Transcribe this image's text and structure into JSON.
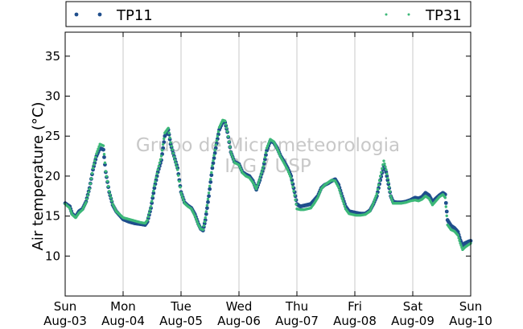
{
  "chart_data": {
    "type": "scatter",
    "ylabel": "Air temperature (°C)",
    "xlabel": "",
    "ylim": [
      5,
      38
    ],
    "xlim": [
      0,
      7
    ],
    "yticks": [
      10,
      15,
      20,
      25,
      30,
      35
    ],
    "xticks": [
      {
        "x": 0,
        "day": "Sun",
        "date": "Aug-03"
      },
      {
        "x": 1,
        "day": "Mon",
        "date": "Aug-04"
      },
      {
        "x": 2,
        "day": "Tue",
        "date": "Aug-05"
      },
      {
        "x": 3,
        "day": "Wed",
        "date": "Aug-06"
      },
      {
        "x": 4,
        "day": "Thu",
        "date": "Aug-07"
      },
      {
        "x": 5,
        "day": "Fri",
        "date": "Aug-08"
      },
      {
        "x": 6,
        "day": "Sat",
        "date": "Aug-09"
      },
      {
        "x": 7,
        "day": "Sun",
        "date": "Aug-10"
      }
    ],
    "grid": "vertical",
    "legend_placement": "top",
    "watermark": [
      "Grupo de Micrometeorologia",
      "IAG / USP"
    ],
    "series": [
      {
        "name": "TP11",
        "color": "#1f4e8c",
        "points": [
          [
            0.0,
            16.6
          ],
          [
            0.08,
            16.2
          ],
          [
            0.12,
            15.3
          ],
          [
            0.18,
            14.9
          ],
          [
            0.24,
            15.6
          ],
          [
            0.3,
            15.9
          ],
          [
            0.36,
            16.8
          ],
          [
            0.42,
            18.5
          ],
          [
            0.48,
            20.8
          ],
          [
            0.54,
            22.5
          ],
          [
            0.6,
            23.5
          ],
          [
            0.66,
            23.3
          ],
          [
            0.7,
            20.5
          ],
          [
            0.76,
            18.0
          ],
          [
            0.82,
            16.4
          ],
          [
            0.88,
            15.6
          ],
          [
            0.94,
            15.1
          ],
          [
            1.0,
            14.6
          ],
          [
            1.1,
            14.3
          ],
          [
            1.2,
            14.1
          ],
          [
            1.3,
            14.0
          ],
          [
            1.38,
            13.9
          ],
          [
            1.42,
            14.3
          ],
          [
            1.48,
            16.0
          ],
          [
            1.54,
            18.5
          ],
          [
            1.6,
            20.5
          ],
          [
            1.66,
            22.0
          ],
          [
            1.72,
            25.0
          ],
          [
            1.78,
            25.8
          ],
          [
            1.82,
            24.0
          ],
          [
            1.88,
            22.5
          ],
          [
            1.94,
            21.0
          ],
          [
            2.0,
            18.0
          ],
          [
            2.06,
            16.7
          ],
          [
            2.12,
            16.3
          ],
          [
            2.18,
            16.0
          ],
          [
            2.24,
            15.2
          ],
          [
            2.3,
            14.0
          ],
          [
            2.34,
            13.4
          ],
          [
            2.38,
            13.2
          ],
          [
            2.42,
            14.5
          ],
          [
            2.48,
            17.5
          ],
          [
            2.54,
            21.0
          ],
          [
            2.6,
            23.5
          ],
          [
            2.66,
            25.8
          ],
          [
            2.72,
            26.8
          ],
          [
            2.76,
            26.7
          ],
          [
            2.8,
            25.5
          ],
          [
            2.86,
            23.0
          ],
          [
            2.92,
            21.8
          ],
          [
            3.0,
            21.5
          ],
          [
            3.06,
            20.5
          ],
          [
            3.12,
            20.2
          ],
          [
            3.18,
            20.0
          ],
          [
            3.24,
            19.4
          ],
          [
            3.3,
            18.3
          ],
          [
            3.36,
            19.5
          ],
          [
            3.42,
            21.0
          ],
          [
            3.48,
            23.2
          ],
          [
            3.54,
            24.4
          ],
          [
            3.6,
            24.2
          ],
          [
            3.66,
            23.5
          ],
          [
            3.72,
            22.5
          ],
          [
            3.78,
            21.8
          ],
          [
            3.84,
            21.0
          ],
          [
            3.9,
            20.0
          ],
          [
            3.96,
            18.0
          ],
          [
            4.0,
            16.5
          ],
          [
            4.06,
            16.2
          ],
          [
            4.12,
            16.3
          ],
          [
            4.18,
            16.4
          ],
          [
            4.24,
            16.5
          ],
          [
            4.3,
            17.0
          ],
          [
            4.36,
            17.5
          ],
          [
            4.42,
            18.5
          ],
          [
            4.48,
            18.9
          ],
          [
            4.54,
            19.1
          ],
          [
            4.6,
            19.4
          ],
          [
            4.66,
            19.6
          ],
          [
            4.72,
            18.9
          ],
          [
            4.78,
            17.5
          ],
          [
            4.84,
            16.2
          ],
          [
            4.9,
            15.6
          ],
          [
            4.96,
            15.5
          ],
          [
            5.02,
            15.4
          ],
          [
            5.1,
            15.3
          ],
          [
            5.18,
            15.3
          ],
          [
            5.26,
            15.7
          ],
          [
            5.32,
            16.5
          ],
          [
            5.38,
            17.5
          ],
          [
            5.44,
            19.5
          ],
          [
            5.5,
            21.3
          ],
          [
            5.54,
            20.5
          ],
          [
            5.58,
            19.0
          ],
          [
            5.62,
            17.5
          ],
          [
            5.66,
            16.8
          ],
          [
            5.72,
            16.7
          ],
          [
            5.8,
            16.7
          ],
          [
            5.88,
            16.8
          ],
          [
            5.96,
            17.0
          ],
          [
            6.04,
            17.3
          ],
          [
            6.1,
            17.2
          ],
          [
            6.16,
            17.4
          ],
          [
            6.22,
            17.9
          ],
          [
            6.28,
            17.6
          ],
          [
            6.34,
            16.8
          ],
          [
            6.4,
            17.2
          ],
          [
            6.46,
            17.6
          ],
          [
            6.52,
            17.9
          ],
          [
            6.56,
            17.7
          ],
          [
            6.6,
            14.5
          ],
          [
            6.66,
            13.8
          ],
          [
            6.72,
            13.5
          ],
          [
            6.78,
            13.0
          ],
          [
            6.82,
            12.0
          ],
          [
            6.86,
            11.3
          ],
          [
            6.9,
            11.6
          ],
          [
            6.96,
            11.8
          ],
          [
            7.0,
            11.9
          ]
        ]
      },
      {
        "name": "TP31",
        "color": "#3cb878",
        "points": [
          [
            0.0,
            16.5
          ],
          [
            0.08,
            16.0
          ],
          [
            0.12,
            15.2
          ],
          [
            0.18,
            14.8
          ],
          [
            0.24,
            15.4
          ],
          [
            0.3,
            15.8
          ],
          [
            0.36,
            16.7
          ],
          [
            0.42,
            18.4
          ],
          [
            0.48,
            21.0
          ],
          [
            0.54,
            22.8
          ],
          [
            0.6,
            24.0
          ],
          [
            0.66,
            23.8
          ],
          [
            0.7,
            20.6
          ],
          [
            0.76,
            18.1
          ],
          [
            0.82,
            16.5
          ],
          [
            0.88,
            15.6
          ],
          [
            0.94,
            15.2
          ],
          [
            1.0,
            14.8
          ],
          [
            1.1,
            14.6
          ],
          [
            1.2,
            14.4
          ],
          [
            1.3,
            14.2
          ],
          [
            1.38,
            14.1
          ],
          [
            1.42,
            14.5
          ],
          [
            1.48,
            16.2
          ],
          [
            1.54,
            18.8
          ],
          [
            1.6,
            20.8
          ],
          [
            1.66,
            22.5
          ],
          [
            1.72,
            25.4
          ],
          [
            1.78,
            26.0
          ],
          [
            1.82,
            24.2
          ],
          [
            1.88,
            22.4
          ],
          [
            1.94,
            20.8
          ],
          [
            2.0,
            17.9
          ],
          [
            2.06,
            16.6
          ],
          [
            2.12,
            16.2
          ],
          [
            2.18,
            15.9
          ],
          [
            2.24,
            15.0
          ],
          [
            2.3,
            13.9
          ],
          [
            2.34,
            13.4
          ],
          [
            2.38,
            13.3
          ],
          [
            2.42,
            14.8
          ],
          [
            2.48,
            17.9
          ],
          [
            2.54,
            21.3
          ],
          [
            2.6,
            23.9
          ],
          [
            2.66,
            26.1
          ],
          [
            2.72,
            27.0
          ],
          [
            2.76,
            26.9
          ],
          [
            2.8,
            25.6
          ],
          [
            2.86,
            23.0
          ],
          [
            2.92,
            21.7
          ],
          [
            3.0,
            21.4
          ],
          [
            3.06,
            20.4
          ],
          [
            3.12,
            20.0
          ],
          [
            3.18,
            19.8
          ],
          [
            3.24,
            19.2
          ],
          [
            3.3,
            18.4
          ],
          [
            3.36,
            19.7
          ],
          [
            3.42,
            21.2
          ],
          [
            3.48,
            23.5
          ],
          [
            3.54,
            24.6
          ],
          [
            3.6,
            24.3
          ],
          [
            3.66,
            23.4
          ],
          [
            3.72,
            22.4
          ],
          [
            3.78,
            21.6
          ],
          [
            3.84,
            20.8
          ],
          [
            3.9,
            19.7
          ],
          [
            3.96,
            17.6
          ],
          [
            4.0,
            15.9
          ],
          [
            4.06,
            15.8
          ],
          [
            4.12,
            15.8
          ],
          [
            4.18,
            15.9
          ],
          [
            4.24,
            16.0
          ],
          [
            4.3,
            16.6
          ],
          [
            4.36,
            17.3
          ],
          [
            4.42,
            18.4
          ],
          [
            4.48,
            18.9
          ],
          [
            4.54,
            19.2
          ],
          [
            4.6,
            19.5
          ],
          [
            4.66,
            19.4
          ],
          [
            4.72,
            18.6
          ],
          [
            4.78,
            17.2
          ],
          [
            4.84,
            15.9
          ],
          [
            4.9,
            15.3
          ],
          [
            4.96,
            15.2
          ],
          [
            5.02,
            15.1
          ],
          [
            5.1,
            15.1
          ],
          [
            5.18,
            15.2
          ],
          [
            5.26,
            15.6
          ],
          [
            5.32,
            16.6
          ],
          [
            5.38,
            17.8
          ],
          [
            5.44,
            20.0
          ],
          [
            5.5,
            21.9
          ],
          [
            5.54,
            20.8
          ],
          [
            5.58,
            19.2
          ],
          [
            5.62,
            17.5
          ],
          [
            5.66,
            16.6
          ],
          [
            5.72,
            16.6
          ],
          [
            5.8,
            16.6
          ],
          [
            5.88,
            16.7
          ],
          [
            5.96,
            16.9
          ],
          [
            6.04,
            17.0
          ],
          [
            6.1,
            16.9
          ],
          [
            6.16,
            17.1
          ],
          [
            6.22,
            17.5
          ],
          [
            6.28,
            17.2
          ],
          [
            6.34,
            16.4
          ],
          [
            6.4,
            16.9
          ],
          [
            6.46,
            17.4
          ],
          [
            6.52,
            17.7
          ],
          [
            6.56,
            17.3
          ],
          [
            6.6,
            13.9
          ],
          [
            6.66,
            13.3
          ],
          [
            6.72,
            13.1
          ],
          [
            6.78,
            12.6
          ],
          [
            6.82,
            11.6
          ],
          [
            6.86,
            10.8
          ],
          [
            6.9,
            11.1
          ],
          [
            6.96,
            11.4
          ],
          [
            7.0,
            11.6
          ]
        ]
      }
    ]
  }
}
